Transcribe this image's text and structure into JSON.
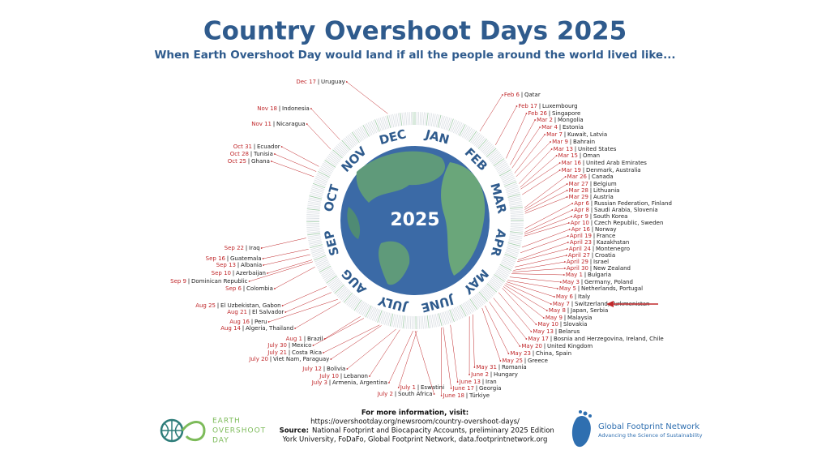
{
  "header": {
    "title": "Country Overshoot Days 2025",
    "subtitle": "When Earth Overshoot Day would land if all the people around the world lived like..."
  },
  "center_label": "2025",
  "months": [
    "JAN",
    "FEB",
    "MAR",
    "APR",
    "MAY",
    "JUNE",
    "JULY",
    "AUG",
    "SEP",
    "OCT",
    "NOV",
    "DEC"
  ],
  "entries": [
    {
      "date": "Feb 6",
      "country": "Qatar"
    },
    {
      "date": "Feb 17",
      "country": "Luxembourg"
    },
    {
      "date": "Feb 26",
      "country": "Singapore"
    },
    {
      "date": "Mar 2",
      "country": "Mongolia"
    },
    {
      "date": "Mar 4",
      "country": "Estonia"
    },
    {
      "date": "Mar 7",
      "country": "Kuwait, Latvia"
    },
    {
      "date": "Mar 9",
      "country": "Bahrain"
    },
    {
      "date": "Mar 13",
      "country": "United States"
    },
    {
      "date": "Mar 15",
      "country": "Oman"
    },
    {
      "date": "Mar 16",
      "country": "United Arab Emirates"
    },
    {
      "date": "Mar 19",
      "country": "Denmark, Australia"
    },
    {
      "date": "Mar 26",
      "country": "Canada"
    },
    {
      "date": "Mar 27",
      "country": "Belgium"
    },
    {
      "date": "Mar 28",
      "country": "Lithuania"
    },
    {
      "date": "Mar 29",
      "country": "Austria"
    },
    {
      "date": "Apr 6",
      "country": "Russian Federation, Finland"
    },
    {
      "date": "Apr 8",
      "country": "Saudi Arabia, Slovenia"
    },
    {
      "date": "Apr 9",
      "country": "South Korea"
    },
    {
      "date": "Apr 10",
      "country": "Czech Republic, Sweden"
    },
    {
      "date": "Apr 16",
      "country": "Norway"
    },
    {
      "date": "April 19",
      "country": "France"
    },
    {
      "date": "April 23",
      "country": "Kazakhstan"
    },
    {
      "date": "April 24",
      "country": "Montenegro"
    },
    {
      "date": "April 27",
      "country": "Croatia"
    },
    {
      "date": "April 29",
      "country": "Israel"
    },
    {
      "date": "April 30",
      "country": "New Zealand"
    },
    {
      "date": "May 1",
      "country": "Bulgaria"
    },
    {
      "date": "May 3",
      "country": "Germany, Poland"
    },
    {
      "date": "May 5",
      "country": "Netherlands, Portugal"
    },
    {
      "date": "May 6",
      "country": "Italy"
    },
    {
      "date": "May 7",
      "country": "Switzerland, Turkmenistan"
    },
    {
      "date": "May 8",
      "country": "Japan, Serbia"
    },
    {
      "date": "May 9",
      "country": "Malaysia"
    },
    {
      "date": "May 10",
      "country": "Slovakia"
    },
    {
      "date": "May 13",
      "country": "Belarus"
    },
    {
      "date": "May 17",
      "country": "Bosnia and Herzegovina, Ireland, Chile"
    },
    {
      "date": "May 20",
      "country": "United Kingdom"
    },
    {
      "date": "May 23",
      "country": "China, Spain"
    },
    {
      "date": "May 25",
      "country": "Greece"
    },
    {
      "date": "May 31",
      "country": "Romania"
    },
    {
      "date": "June 2",
      "country": "Hungary"
    },
    {
      "date": "June 13",
      "country": "Iran"
    },
    {
      "date": "June 17",
      "country": "Georgia"
    },
    {
      "date": "June 18",
      "country": "Türkiye"
    },
    {
      "date": "July 1",
      "country": "Eswatini"
    },
    {
      "date": "July 2",
      "country": "South Africa"
    },
    {
      "date": "Dec 17",
      "country": "Uruguay"
    },
    {
      "date": "Nov 18",
      "country": "Indonesia"
    },
    {
      "date": "Nov 11",
      "country": "Nicaragua"
    },
    {
      "date": "Oct 31",
      "country": "Ecuador"
    },
    {
      "date": "Oct 28",
      "country": "Tunisia"
    },
    {
      "date": "Oct 25",
      "country": "Ghana"
    },
    {
      "date": "Sep 22",
      "country": "Iraq"
    },
    {
      "date": "Sep 16",
      "country": "Guatemala"
    },
    {
      "date": "Sep 13",
      "country": "Albania"
    },
    {
      "date": "Sep 10",
      "country": "Azerbaijan"
    },
    {
      "date": "Sep 9",
      "country": "Dominican Republic"
    },
    {
      "date": "Sep 6",
      "country": "Colombia"
    },
    {
      "date": "Aug 25",
      "country": "El Uzbekistan, Gabon"
    },
    {
      "date": "Aug 21",
      "country": "El Salvador"
    },
    {
      "date": "Aug 16",
      "country": "Peru"
    },
    {
      "date": "Aug 14",
      "country": "Algeria, Thailand"
    },
    {
      "date": "Aug 1",
      "country": "Brazil"
    },
    {
      "date": "July 30",
      "country": "Mexico"
    },
    {
      "date": "July 21",
      "country": "Costa Rica"
    },
    {
      "date": "July 20",
      "country": "Viet Nam, Paraguay"
    },
    {
      "date": "July 12",
      "country": "Bolivia"
    },
    {
      "date": "July 10",
      "country": "Lebanon"
    },
    {
      "date": "July 3",
      "country": "Armenia, Argentina"
    }
  ],
  "footer": {
    "info": "For more information, visit:",
    "url": "https://overshootday.org/newsroom/country-overshoot-days/",
    "source_label": "Source:",
    "source_text": "National Footprint and Biocapacity Accounts, preliminary 2025 Edition",
    "source_line2": "York University, FoDaFo, Global Footprint Network, data.footprintnetwork.org"
  },
  "logos": {
    "eod": [
      "EARTH",
      "OVERSHOOT",
      "DAY"
    ],
    "gfn_name": "Global Footprint Network",
    "gfn_tagline": "Advancing the Science of Sustainability"
  }
}
